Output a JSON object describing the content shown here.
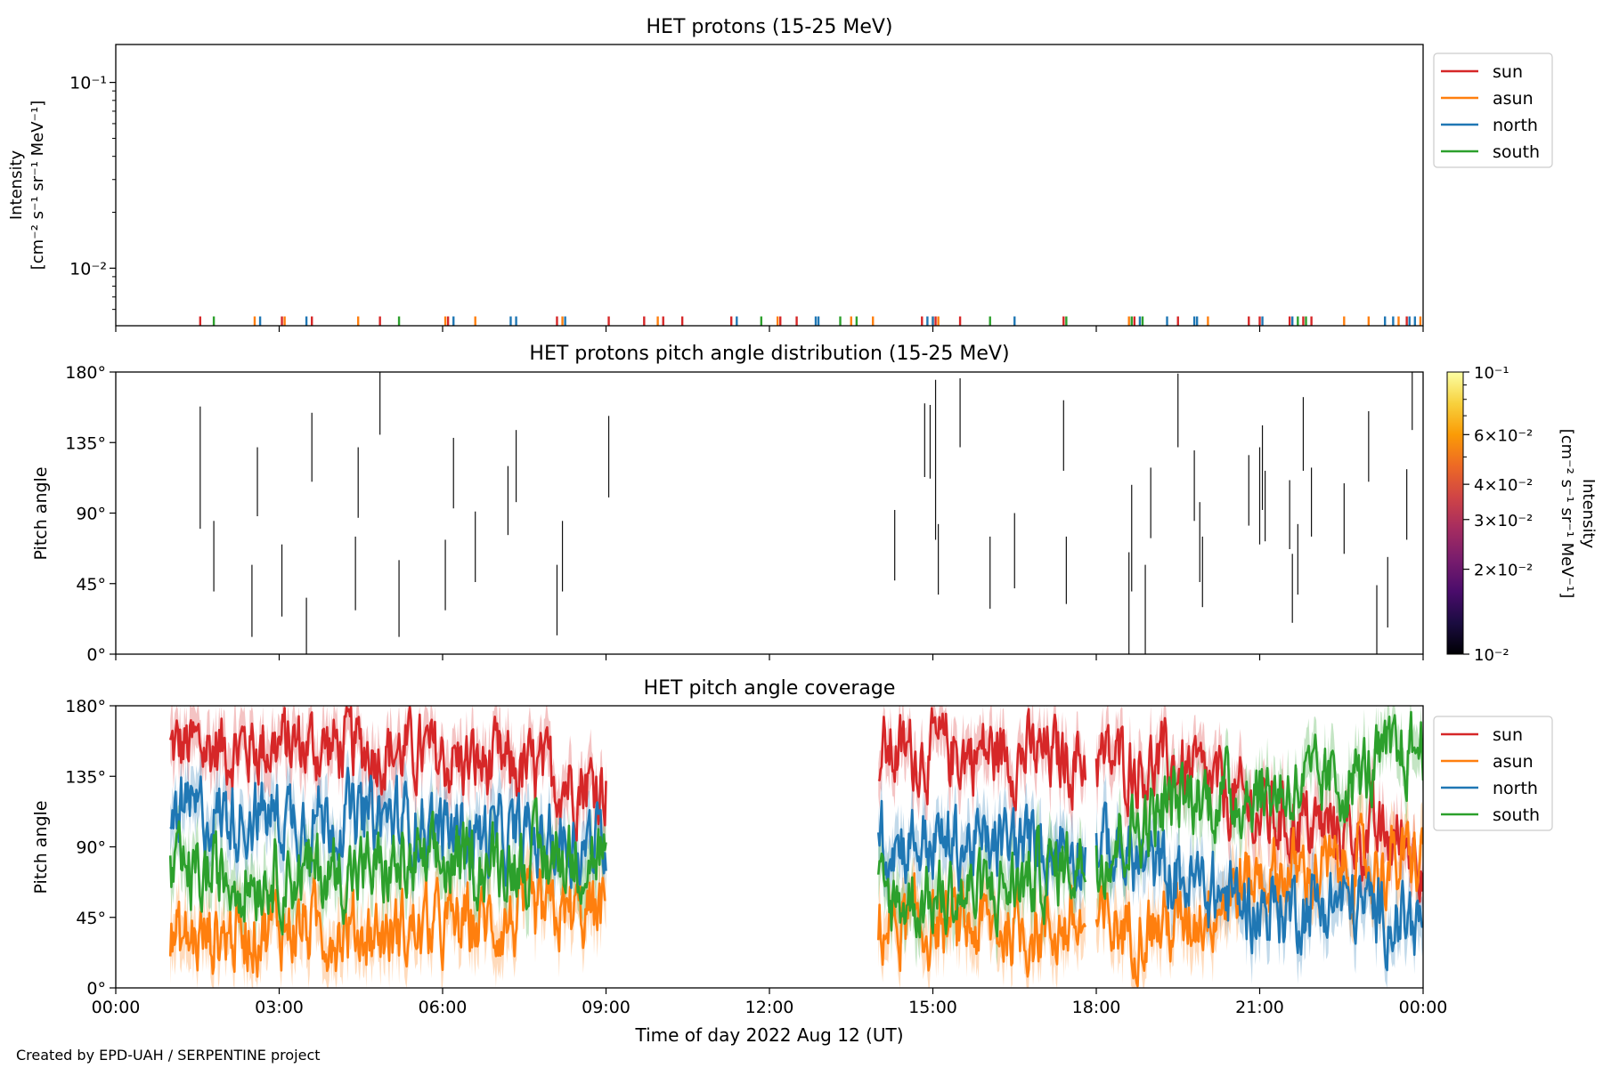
{
  "footer": "Created by EPD-UAH / SERPENTINE project",
  "colors": {
    "sun": "#d62728",
    "asun": "#ff7f0e",
    "north": "#1f77b4",
    "south": "#2ca02c",
    "colormap": [
      "#000004",
      "#1b0c41",
      "#4a0c6b",
      "#781c6d",
      "#a52c60",
      "#cf4446",
      "#ed6925",
      "#fb9b06",
      "#f7d13d",
      "#fcffa4"
    ]
  },
  "chart_data": [
    {
      "type": "line",
      "title": "HET protons (15-25 MeV)",
      "ylabel_line1": "Intensity",
      "ylabel_line2": "[cm⁻² s⁻¹ sr⁻¹ MeV⁻¹]",
      "yscale": "log",
      "ylim": [
        0.0049,
        0.16
      ],
      "yticks": [
        {
          "value": 0.01,
          "label": "10⁻²"
        },
        {
          "value": 0.1,
          "label": "10⁻¹"
        }
      ],
      "xlim_hours": [
        0,
        24
      ],
      "legend": {
        "position": "outside-right",
        "entries": [
          "sun",
          "asun",
          "north",
          "south"
        ]
      },
      "note": "Isolated single-count spikes reaching ~0.0055",
      "spikes": {
        "sun": [
          1.55,
          3.05,
          3.6,
          4.85,
          6.1,
          8.1,
          9.05,
          9.7,
          10.05,
          10.4,
          11.3,
          12.2,
          12.5,
          14.8,
          15.05,
          15.5,
          17.4,
          18.7,
          19.5,
          20.8,
          21.0,
          21.55,
          21.8,
          21.95,
          23.7
        ],
        "asun": [
          2.55,
          3.1,
          4.45,
          6.05,
          6.6,
          8.2,
          9.95,
          12.15,
          13.5,
          13.9,
          15.0,
          15.1,
          18.6,
          20.05,
          22.55,
          23.0,
          23.55,
          23.95
        ],
        "north": [
          2.65,
          3.5,
          6.2,
          7.25,
          7.35,
          8.25,
          11.4,
          12.85,
          12.9,
          14.9,
          15.0,
          16.5,
          18.8,
          19.3,
          19.8,
          19.85,
          21.05,
          21.6,
          23.3,
          23.45,
          23.75,
          23.85
        ],
        "south": [
          1.8,
          5.2,
          11.85,
          13.3,
          13.6,
          16.05,
          17.45,
          18.65,
          18.85,
          21.7,
          21.85
        ]
      }
    },
    {
      "type": "heatmap",
      "title": "HET protons pitch angle distribution (15-25 MeV)",
      "ylabel": "Pitch angle",
      "ylim": [
        0,
        180
      ],
      "yticks": [
        "0°",
        "45°",
        "90°",
        "135°",
        "180°"
      ],
      "colorbar": {
        "label_line1": "Intensity",
        "label_line2": "[cm⁻² s⁻¹ sr⁻¹ MeV⁻¹]",
        "scale": "log",
        "range": [
          0.01,
          0.1
        ],
        "ticks": [
          {
            "value": 0.01,
            "label": "10⁻²"
          },
          {
            "value": 0.02,
            "label": "2×10⁻²"
          },
          {
            "value": 0.03,
            "label": "3×10⁻²"
          },
          {
            "value": 0.04,
            "label": "4×10⁻²"
          },
          {
            "value": 0.06,
            "label": "6×10⁻²"
          },
          {
            "value": 0.1,
            "label": "10⁻¹"
          }
        ]
      },
      "segments": [
        [
          1.55,
          80,
          158
        ],
        [
          1.8,
          40,
          85
        ],
        [
          2.5,
          11,
          57
        ],
        [
          2.6,
          88,
          132
        ],
        [
          3.05,
          24,
          70
        ],
        [
          3.5,
          0,
          36
        ],
        [
          3.6,
          110,
          154
        ],
        [
          4.4,
          28,
          75
        ],
        [
          4.45,
          87,
          132
        ],
        [
          4.85,
          140,
          180
        ],
        [
          5.2,
          11,
          60
        ],
        [
          6.05,
          28,
          73
        ],
        [
          6.2,
          93,
          138
        ],
        [
          6.6,
          46,
          91
        ],
        [
          7.2,
          76,
          120
        ],
        [
          7.35,
          97,
          143
        ],
        [
          8.1,
          12,
          57
        ],
        [
          8.2,
          40,
          85
        ],
        [
          9.05,
          100,
          152
        ],
        [
          14.3,
          47,
          92
        ],
        [
          14.85,
          113,
          160
        ],
        [
          14.95,
          112,
          159
        ],
        [
          15.05,
          73,
          175
        ],
        [
          15.1,
          38,
          83
        ],
        [
          15.5,
          132,
          176
        ],
        [
          16.05,
          29,
          75
        ],
        [
          16.5,
          42,
          90
        ],
        [
          17.4,
          117,
          162
        ],
        [
          17.45,
          32,
          75
        ],
        [
          18.6,
          0,
          65
        ],
        [
          18.65,
          40,
          108
        ],
        [
          18.9,
          0,
          57
        ],
        [
          19.0,
          74,
          119
        ],
        [
          19.5,
          132,
          179
        ],
        [
          19.8,
          85,
          130
        ],
        [
          19.9,
          46,
          97
        ],
        [
          19.95,
          30,
          75
        ],
        [
          20.8,
          82,
          127
        ],
        [
          21.0,
          70,
          132
        ],
        [
          21.05,
          92,
          146
        ],
        [
          21.1,
          72,
          117
        ],
        [
          21.55,
          67,
          111
        ],
        [
          21.6,
          20,
          64
        ],
        [
          21.7,
          38,
          83
        ],
        [
          21.8,
          117,
          164
        ],
        [
          21.95,
          75,
          119
        ],
        [
          22.55,
          64,
          109
        ],
        [
          23.0,
          110,
          155
        ],
        [
          23.15,
          0,
          44
        ],
        [
          23.35,
          17,
          62
        ],
        [
          23.7,
          73,
          118
        ],
        [
          23.8,
          143,
          180
        ]
      ]
    },
    {
      "type": "line",
      "title": "HET pitch angle coverage",
      "ylabel": "Pitch angle",
      "xlabel": "Time of day 2022 Aug 12 (UT)",
      "ylim": [
        0,
        180
      ],
      "yticks": [
        "0°",
        "45°",
        "90°",
        "135°",
        "180°"
      ],
      "xticks": [
        "00:00",
        "03:00",
        "06:00",
        "09:00",
        "12:00",
        "15:00",
        "18:00",
        "21:00",
        "00:00"
      ],
      "legend": {
        "position": "outside-right",
        "entries": [
          "sun",
          "asun",
          "north",
          "south"
        ]
      },
      "data_intervals_hours": [
        [
          1.0,
          9.0
        ],
        [
          14.0,
          17.8
        ],
        [
          18.0,
          24.0
        ]
      ],
      "series": [
        {
          "name": "sun",
          "x": [
            1,
            3,
            5,
            7,
            9,
            14,
            16,
            18,
            19.5,
            21,
            22.5,
            24
          ],
          "values": [
            152,
            155,
            152,
            140,
            130,
            150,
            150,
            145,
            140,
            110,
            100,
            90
          ]
        },
        {
          "name": "asun",
          "x": [
            1,
            3,
            5,
            7,
            9,
            14,
            16,
            18,
            19.5,
            21,
            22.5,
            24
          ],
          "values": [
            28,
            40,
            35,
            42,
            48,
            40,
            38,
            38,
            40,
            72,
            75,
            80
          ]
        },
        {
          "name": "north",
          "x": [
            1,
            3,
            5,
            7,
            9,
            14,
            16,
            18,
            19.5,
            21,
            22.5,
            24
          ],
          "values": [
            110,
            110,
            108,
            95,
            92,
            95,
            90,
            92,
            70,
            50,
            55,
            40
          ]
        },
        {
          "name": "south",
          "x": [
            1,
            3,
            5,
            7,
            9,
            14,
            16,
            18,
            19.5,
            21,
            22.5,
            24
          ],
          "values": [
            70,
            72,
            75,
            80,
            85,
            55,
            60,
            85,
            120,
            125,
            130,
            155
          ]
        }
      ]
    }
  ]
}
